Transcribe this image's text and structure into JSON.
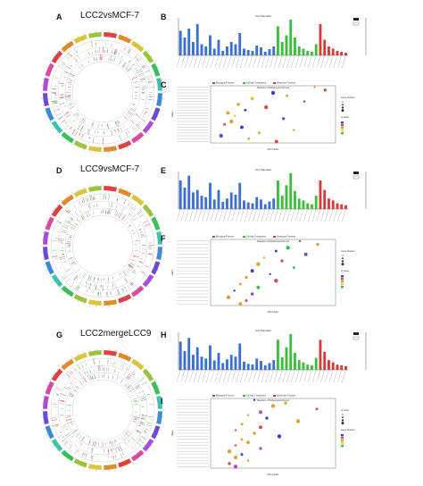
{
  "panels": {
    "A": {
      "letter": "A",
      "title": "LCC2vsMCF-7"
    },
    "B": {
      "letter": "B"
    },
    "C": {
      "letter": "C"
    },
    "D": {
      "letter": "D",
      "title": "LCC9vsMCF-7"
    },
    "E": {
      "letter": "E"
    },
    "F": {
      "letter": "F"
    },
    "G": {
      "letter": "G",
      "title": "LCC2mergeLCC9"
    },
    "H": {
      "letter": "H"
    },
    "I": {
      "letter": "I"
    }
  },
  "colors": {
    "bp": "#3b6fd1",
    "cc": "#3bbf3b",
    "mf": "#d43a3a",
    "ring": [
      "#e04040",
      "#e08a2a",
      "#d9c43a",
      "#9ac43a",
      "#3bbf5a",
      "#3ac4b0",
      "#3a8ad9",
      "#6a4ad9",
      "#b04ad9",
      "#d94aa0"
    ]
  },
  "chart_data": [
    {
      "panel": "B",
      "type": "bar",
      "title": "GO-Standard",
      "legend_labels": [
        "Biological Process",
        "Cellular Component",
        "Molecular Function"
      ],
      "values": [
        55,
        40,
        60,
        30,
        70,
        25,
        20,
        45,
        15,
        35,
        10,
        20,
        30,
        25,
        50,
        15,
        12,
        10,
        22,
        18,
        8,
        14,
        20,
        65,
        30,
        45,
        80,
        40,
        20,
        15,
        10,
        8,
        25,
        70,
        35,
        20,
        15,
        10,
        8,
        6
      ]
    },
    {
      "panel": "C",
      "type": "scatter",
      "title": "Statistics of Pathway Enrichment",
      "xlabel": "Rich Factor",
      "ylabel": "Name",
      "points": [
        [
          3.8,
          19
        ],
        [
          4.1,
          18
        ],
        [
          2.6,
          17
        ],
        [
          3.0,
          16
        ],
        [
          2.0,
          15
        ],
        [
          3.5,
          14
        ],
        [
          1.6,
          13
        ],
        [
          2.4,
          12
        ],
        [
          1.8,
          11
        ],
        [
          1.3,
          10
        ],
        [
          1.5,
          9
        ],
        [
          2.9,
          8
        ],
        [
          1.4,
          7
        ],
        [
          1.2,
          6
        ],
        [
          1.7,
          5
        ],
        [
          3.2,
          4
        ],
        [
          2.2,
          3
        ],
        [
          1.1,
          2
        ],
        [
          1.9,
          1
        ],
        [
          2.7,
          0
        ]
      ],
      "legend": [
        "Gene Number",
        "Q-value"
      ]
    },
    {
      "panel": "E",
      "type": "bar",
      "title": "GO-Standard",
      "values": [
        60,
        45,
        70,
        35,
        40,
        28,
        25,
        55,
        20,
        40,
        15,
        22,
        35,
        30,
        55,
        18,
        14,
        12,
        25,
        20,
        10,
        16,
        22,
        60,
        28,
        50,
        75,
        38,
        22,
        18,
        12,
        10,
        28,
        60,
        40,
        22,
        18,
        12,
        10,
        8
      ]
    },
    {
      "panel": "F",
      "type": "scatter",
      "title": "Statistics of Pathway Enrichment",
      "xlabel": "Rich Factor",
      "ylabel": "Name",
      "points": [
        [
          2.3,
          19
        ],
        [
          2.6,
          18
        ],
        [
          2.1,
          17
        ],
        [
          1.9,
          16
        ],
        [
          2.4,
          15
        ],
        [
          1.7,
          14
        ],
        [
          2.0,
          13
        ],
        [
          1.6,
          12
        ],
        [
          2.2,
          11
        ],
        [
          1.5,
          10
        ],
        [
          1.8,
          9
        ],
        [
          1.4,
          8
        ],
        [
          1.9,
          7
        ],
        [
          1.3,
          6
        ],
        [
          1.6,
          5
        ],
        [
          1.2,
          4
        ],
        [
          1.5,
          3
        ],
        [
          1.1,
          2
        ],
        [
          1.4,
          1
        ],
        [
          1.3,
          0
        ]
      ],
      "legend": [
        "Gene Number",
        "Q-value"
      ]
    },
    {
      "panel": "H",
      "type": "bar",
      "title": "GO-Standard",
      "values": [
        75,
        50,
        85,
        40,
        60,
        35,
        30,
        65,
        25,
        45,
        18,
        28,
        40,
        35,
        70,
        22,
        16,
        14,
        30,
        24,
        12,
        18,
        26,
        80,
        34,
        60,
        95,
        45,
        26,
        20,
        14,
        12,
        32,
        80,
        48,
        26,
        20,
        14,
        12,
        10
      ]
    },
    {
      "panel": "I",
      "type": "scatter",
      "title": "Statistics of Pathway Enrichment",
      "xlabel": "Rich Factor",
      "ylabel": "Name",
      "points": [
        [
          1.5,
          22
        ],
        [
          2.0,
          21
        ],
        [
          1.8,
          20
        ],
        [
          2.5,
          19
        ],
        [
          1.6,
          18
        ],
        [
          1.4,
          17
        ],
        [
          1.7,
          16
        ],
        [
          2.2,
          15
        ],
        [
          1.3,
          14
        ],
        [
          1.6,
          13
        ],
        [
          1.2,
          12
        ],
        [
          1.5,
          11
        ],
        [
          1.9,
          10
        ],
        [
          1.3,
          9
        ],
        [
          1.4,
          8
        ],
        [
          1.2,
          7
        ],
        [
          1.6,
          6
        ],
        [
          1.1,
          5
        ],
        [
          1.3,
          4
        ],
        [
          1.2,
          3
        ],
        [
          1.4,
          2
        ],
        [
          1.1,
          1
        ],
        [
          1.2,
          0
        ]
      ],
      "legend": [
        "Q-value",
        "Gene Number"
      ]
    }
  ]
}
